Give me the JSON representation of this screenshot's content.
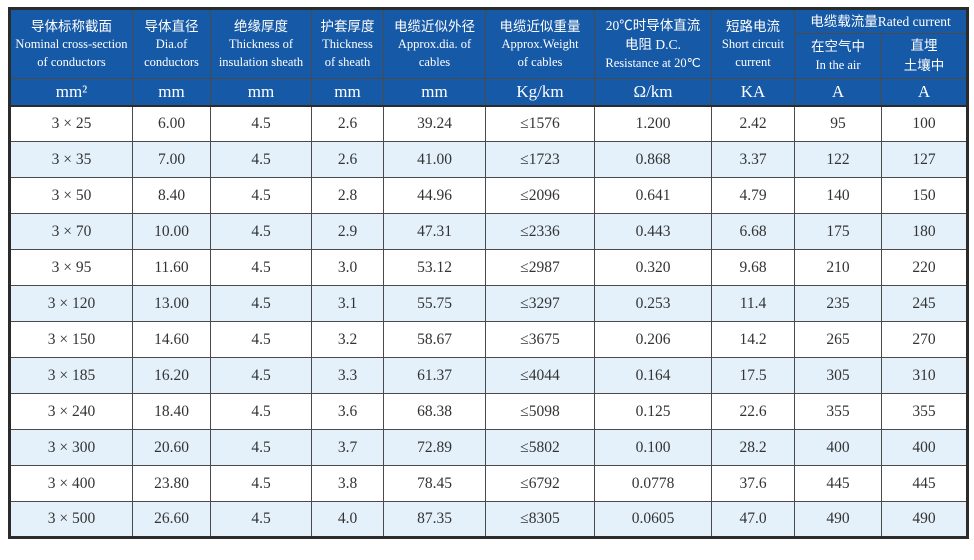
{
  "colors": {
    "header_background": "#1659a6",
    "header_text": "#ffffff",
    "stripe_row_background": "#e4f1fa",
    "grid_line": "#4a4a4a",
    "outer_border": "#2b2b2b",
    "data_text": "#333333"
  },
  "table": {
    "group_header": "电缆载流量Rated current",
    "columns": [
      {
        "zh": "导体标称截面",
        "en": "Nominal cross-section\nof conductors",
        "unit": "mm²"
      },
      {
        "zh": "导体直径",
        "en": "Dia.of\nconductors",
        "unit": "mm"
      },
      {
        "zh": "绝缘厚度",
        "en": "Thickness of\ninsulation sheath",
        "unit": "mm"
      },
      {
        "zh": "护套厚度",
        "en": "Thickness\nof sheath",
        "unit": "mm"
      },
      {
        "zh": "电缆近似外径",
        "en": "Approx.dia. of\ncables",
        "unit": "mm"
      },
      {
        "zh": "电缆近似重量",
        "en": "Approx.Weight\nof cables",
        "unit": "Kg/km"
      },
      {
        "zh": "20℃时导体直流\n电阻 D.C.",
        "en": "Resistance at 20℃",
        "unit": "Ω/km"
      },
      {
        "zh": "短路电流",
        "en": "Short circuit\ncurrent",
        "unit": "KA"
      },
      {
        "zh": "在空气中",
        "en": "In the air",
        "unit": "A"
      },
      {
        "zh": "直埋\n土壤中",
        "en": "",
        "unit": "A"
      }
    ],
    "rows": [
      [
        "3 × 25",
        "6.00",
        "4.5",
        "2.6",
        "39.24",
        "≤1576",
        "1.200",
        "2.42",
        "95",
        "100"
      ],
      [
        "3 × 35",
        "7.00",
        "4.5",
        "2.6",
        "41.00",
        "≤1723",
        "0.868",
        "3.37",
        "122",
        "127"
      ],
      [
        "3 × 50",
        "8.40",
        "4.5",
        "2.8",
        "44.96",
        "≤2096",
        "0.641",
        "4.79",
        "140",
        "150"
      ],
      [
        "3 × 70",
        "10.00",
        "4.5",
        "2.9",
        "47.31",
        "≤2336",
        "0.443",
        "6.68",
        "175",
        "180"
      ],
      [
        "3 × 95",
        "11.60",
        "4.5",
        "3.0",
        "53.12",
        "≤2987",
        "0.320",
        "9.68",
        "210",
        "220"
      ],
      [
        "3 × 120",
        "13.00",
        "4.5",
        "3.1",
        "55.75",
        "≤3297",
        "0.253",
        "11.4",
        "235",
        "245"
      ],
      [
        "3 × 150",
        "14.60",
        "4.5",
        "3.2",
        "58.67",
        "≤3675",
        "0.206",
        "14.2",
        "265",
        "270"
      ],
      [
        "3 × 185",
        "16.20",
        "4.5",
        "3.3",
        "61.37",
        "≤4044",
        "0.164",
        "17.5",
        "305",
        "310"
      ],
      [
        "3 × 240",
        "18.40",
        "4.5",
        "3.6",
        "68.38",
        "≤5098",
        "0.125",
        "22.6",
        "355",
        "355"
      ],
      [
        "3 × 300",
        "20.60",
        "4.5",
        "3.7",
        "72.89",
        "≤5802",
        "0.100",
        "28.2",
        "400",
        "400"
      ],
      [
        "3 × 400",
        "23.80",
        "4.5",
        "3.8",
        "78.45",
        "≤6792",
        "0.0778",
        "37.6",
        "445",
        "445"
      ],
      [
        "3 × 500",
        "26.60",
        "4.5",
        "4.0",
        "87.35",
        "≤8305",
        "0.0605",
        "47.0",
        "490",
        "490"
      ]
    ]
  }
}
